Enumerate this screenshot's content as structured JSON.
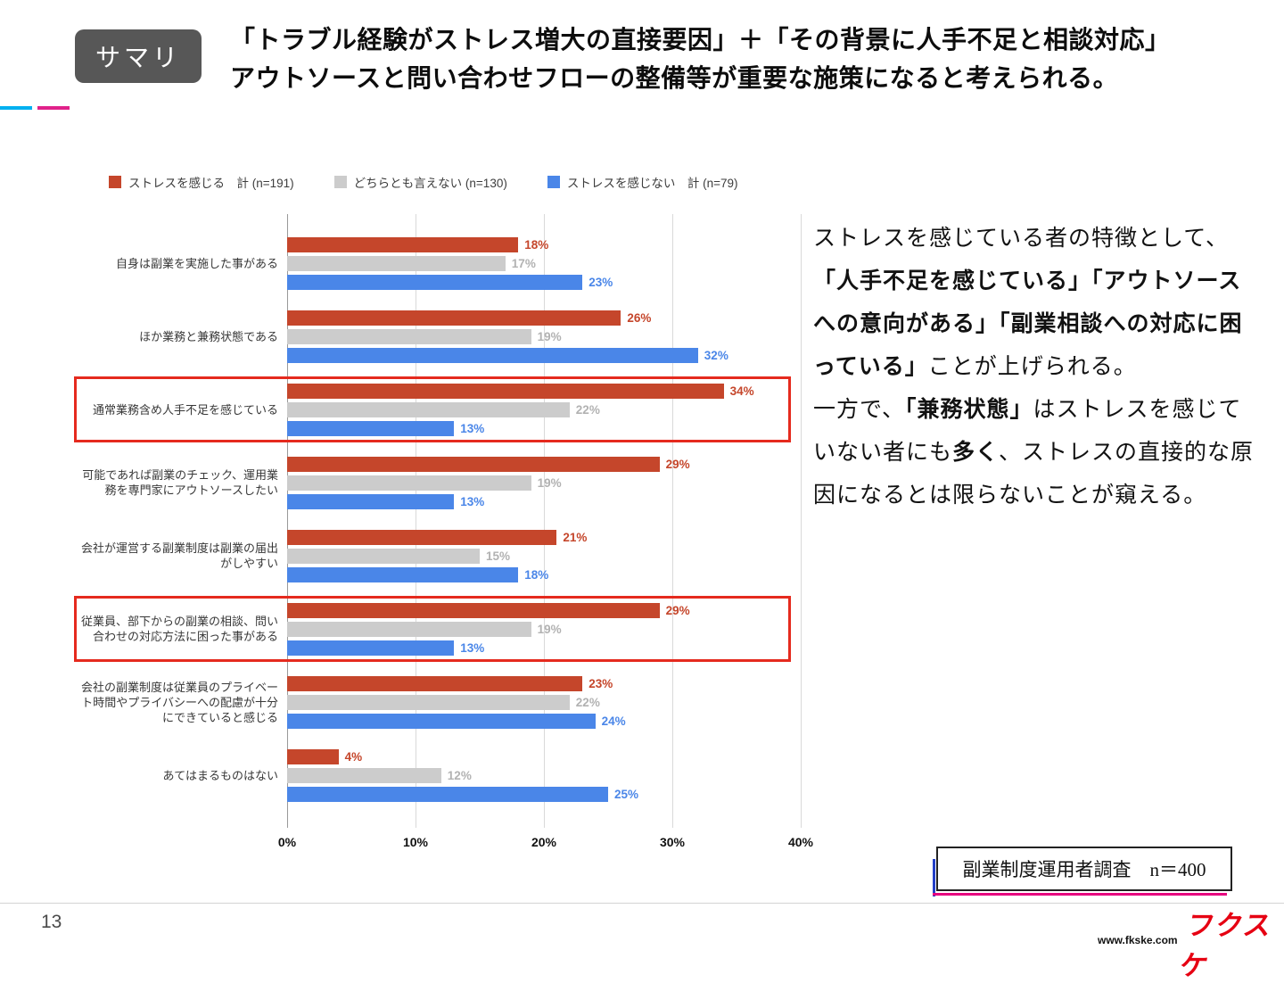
{
  "page": {
    "badge": "サマリ",
    "title_line1": "「トラブル経験がストレス増大の直接要因」＋「その背景に人手不足と相談対応」",
    "title_line2": "アウトソースと問い合わせフローの整備等が重要な施策になると考えられる。",
    "source_note": "副業制度運用者調査　n＝400",
    "page_number": "13",
    "footer_url": "www.fkske.com",
    "logo_text": "フクスケ"
  },
  "commentary": {
    "paragraphs": [
      [
        {
          "text": "ストレスを感じている者の特徴として、",
          "bold": false
        },
        {
          "text": "「人手不足を感じている」「アウトソースへの意向がある」「副業相談への対応に困っている」",
          "bold": true
        },
        {
          "text": "ことが上げられる。",
          "bold": false
        }
      ],
      [
        {
          "text": "一方で、",
          "bold": false
        },
        {
          "text": "「兼務状態」",
          "bold": true
        },
        {
          "text": "はストレスを感じていない者にも",
          "bold": false
        },
        {
          "text": "多く",
          "bold": true
        },
        {
          "text": "、ストレスの直接的な原因になるとは限らないことが窺える。",
          "bold": false
        }
      ]
    ]
  },
  "chart_data": {
    "type": "bar",
    "orientation": "horizontal",
    "title": "",
    "xlim": [
      0,
      40
    ],
    "x_ticks": [
      "0%",
      "10%",
      "20%",
      "30%",
      "40%"
    ],
    "grid": true,
    "legend_position": "top",
    "categories": [
      "自身は副業を実施した事がある",
      "ほか業務と兼務状態である",
      "通常業務含め人手不足を感じている",
      "可能であれば副業のチェック、運用業務を専門家にアウトソースしたい",
      "会社が運営する副業制度は副業の届出がしやすい",
      "従業員、部下からの副業の相談、問い合わせの対応方法に困った事がある",
      "会社の副業制度は従業員のプライベート時間やプライバシーへの配慮が十分にできていると感じる",
      "あてはまるものはない"
    ],
    "series": [
      {
        "name": "ストレスを感じる　計 (n=191)",
        "color": "#c5462b",
        "label_color": "#c5462b",
        "values": [
          18,
          26,
          34,
          29,
          21,
          29,
          23,
          4
        ]
      },
      {
        "name": "どちらとも言えない (n=130)",
        "color": "#cccccc",
        "label_color": "#b2b2b2",
        "values": [
          17,
          19,
          22,
          19,
          15,
          19,
          22,
          12
        ]
      },
      {
        "name": "ストレスを感じない　計 (n=79)",
        "color": "#4a86e8",
        "label_color": "#4a86e8",
        "values": [
          23,
          32,
          13,
          13,
          18,
          13,
          24,
          25
        ]
      }
    ],
    "highlighted_rows": [
      2,
      5
    ],
    "highlight_color": "#e52a1e"
  }
}
